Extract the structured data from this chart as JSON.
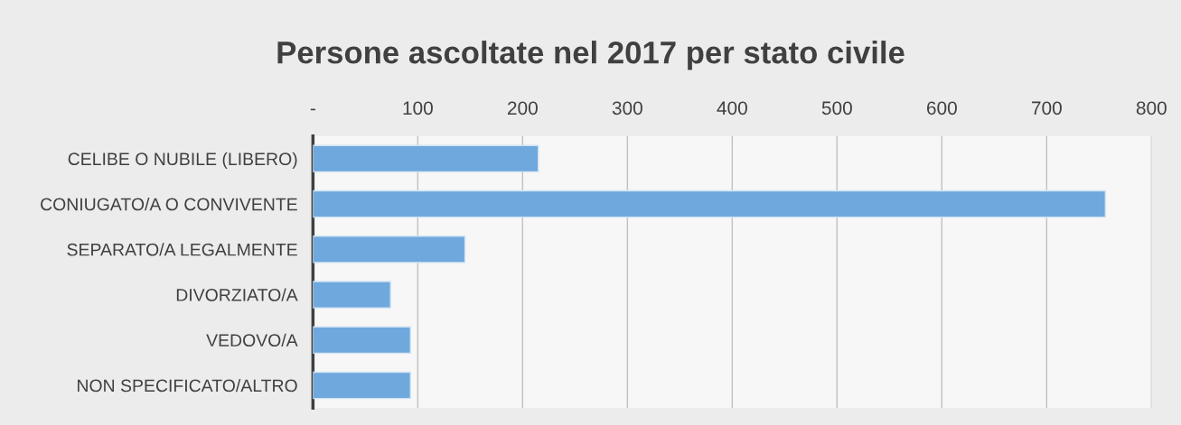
{
  "chart_data": {
    "type": "bar",
    "orientation": "horizontal",
    "title": "Persone ascoltate nel 2017 per stato civile",
    "categories": [
      "CELIBE O NUBILE (LIBERO)",
      "CONIUGATO/A O CONVIVENTE",
      "SEPARATO/A LEGALMENTE",
      "DIVORZIATO/A",
      "VEDOVO/A",
      "NON SPECIFICATO/ALTRO"
    ],
    "values": [
      215,
      756,
      145,
      74,
      93,
      93
    ],
    "color": "#6fa8dc",
    "xlim": [
      0,
      800
    ],
    "xticks": [
      {
        "value": 0,
        "label": "-"
      },
      100,
      200,
      300,
      400,
      500,
      600,
      700,
      800
    ],
    "grid": "x",
    "legend": false
  }
}
